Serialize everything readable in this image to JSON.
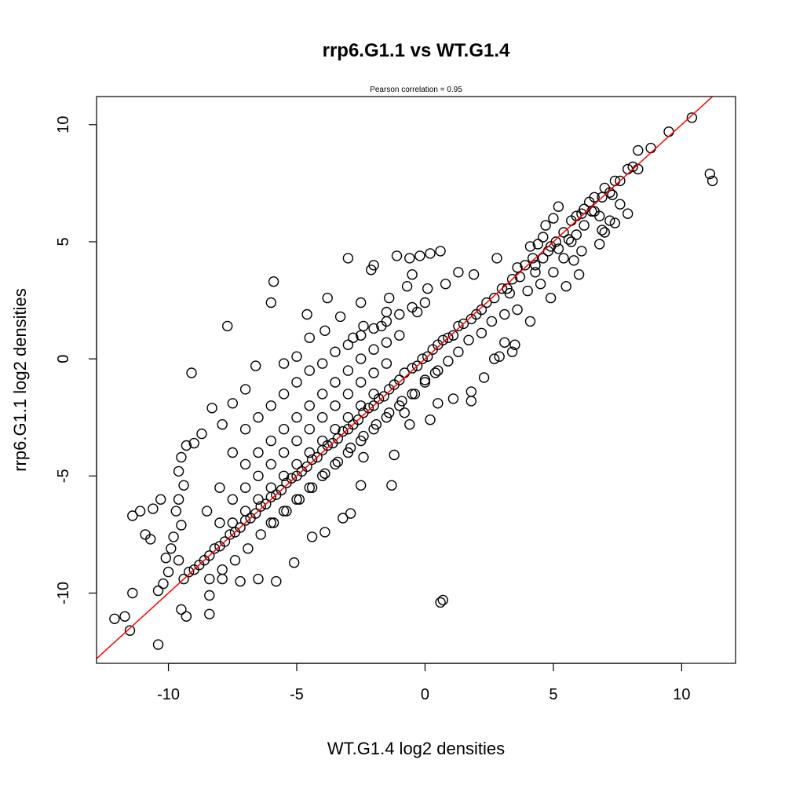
{
  "chart_data": {
    "type": "scatter",
    "title": "rrp6.G1.1 vs WT.G1.4",
    "subtitle": "Pearson correlation =  0.95",
    "xlabel": "WT.G1.4 log2 densities",
    "ylabel": "rrp6.G1.1 log2 densities",
    "xlim": [
      -12.8,
      12.1
    ],
    "ylim": [
      -13.0,
      11.2
    ],
    "x_ticks": [
      -10,
      -5,
      0,
      5,
      10
    ],
    "x_tick_labels": [
      "-10",
      "-5",
      "0",
      "5",
      "10"
    ],
    "y_ticks": [
      -10,
      -5,
      0,
      5,
      10
    ],
    "y_tick_labels": [
      "-10",
      "-5",
      "0",
      "5",
      "10"
    ],
    "grid": false,
    "marker": "open-circle",
    "point_color": "#000000",
    "fit_line": {
      "slope": 1,
      "intercept": 0,
      "color": "#ff0000"
    },
    "series": [
      {
        "points": [
          [
            10.4,
            10.3
          ],
          [
            9.5,
            9.7
          ],
          [
            8.8,
            9.0
          ],
          [
            8.3,
            8.9
          ],
          [
            7.9,
            8.1
          ],
          [
            8.1,
            8.2
          ],
          [
            7.6,
            7.6
          ],
          [
            7.2,
            7.1
          ],
          [
            6.9,
            6.9
          ],
          [
            6.6,
            6.3
          ],
          [
            6.2,
            5.7
          ],
          [
            5.9,
            5.3
          ],
          [
            5.6,
            5.1
          ],
          [
            5.2,
            4.7
          ],
          [
            4.8,
            4.6
          ],
          [
            4.6,
            5.2
          ],
          [
            4.3,
            4.0
          ],
          [
            3.7,
            3.5
          ],
          [
            3.2,
            3.0
          ],
          [
            4.1,
            4.8
          ],
          [
            4.4,
            4.9
          ],
          [
            4.7,
            5.7
          ],
          [
            5.0,
            6.0
          ],
          [
            5.2,
            6.5
          ],
          [
            5.9,
            6.1
          ],
          [
            6.2,
            6.4
          ],
          [
            6.9,
            5.5
          ],
          [
            7.3,
            7.0
          ],
          [
            7.6,
            6.6
          ],
          [
            7.9,
            6.2
          ],
          [
            7.2,
            5.9
          ],
          [
            6.8,
            6.1
          ],
          [
            6.5,
            6.3
          ],
          [
            6.4,
            6.7
          ],
          [
            6.6,
            6.9
          ],
          [
            7.0,
            7.3
          ],
          [
            7.4,
            7.6
          ],
          [
            6.1,
            6.2
          ],
          [
            5.7,
            5.9
          ],
          [
            5.4,
            5.4
          ],
          [
            5.1,
            5.0
          ],
          [
            4.9,
            4.8
          ],
          [
            4.6,
            4.3
          ],
          [
            4.3,
            3.7
          ],
          [
            4.2,
            4.3
          ],
          [
            3.9,
            4.0
          ],
          [
            3.6,
            3.9
          ],
          [
            3.4,
            3.4
          ],
          [
            3.3,
            2.8
          ],
          [
            3.0,
            3.0
          ],
          [
            2.7,
            2.6
          ],
          [
            2.4,
            2.4
          ],
          [
            2.2,
            2.1
          ],
          [
            2.0,
            1.9
          ],
          [
            1.8,
            1.7
          ],
          [
            1.5,
            1.5
          ],
          [
            1.3,
            1.4
          ],
          [
            1.1,
            1.0
          ],
          [
            0.9,
            0.9
          ],
          [
            0.7,
            0.8
          ],
          [
            0.5,
            0.6
          ],
          [
            0.3,
            0.4
          ],
          [
            0.1,
            0.1
          ],
          [
            -0.1,
            0.0
          ],
          [
            -0.3,
            -0.3
          ],
          [
            -0.5,
            -0.4
          ],
          [
            -0.8,
            -0.6
          ],
          [
            -1.0,
            -0.9
          ],
          [
            -1.2,
            -1.1
          ],
          [
            -1.4,
            -1.3
          ],
          [
            -1.6,
            -1.6
          ],
          [
            -1.8,
            -1.7
          ],
          [
            -2.0,
            -2.0
          ],
          [
            -2.2,
            -2.1
          ],
          [
            -2.4,
            -2.3
          ],
          [
            -2.6,
            -2.6
          ],
          [
            -2.8,
            -2.8
          ],
          [
            -3.0,
            -3.0
          ],
          [
            -3.2,
            -3.1
          ],
          [
            -3.4,
            -3.4
          ],
          [
            -3.6,
            -3.6
          ],
          [
            -3.8,
            -3.7
          ],
          [
            -4.0,
            -3.9
          ],
          [
            -4.2,
            -4.2
          ],
          [
            -4.4,
            -4.3
          ],
          [
            -4.6,
            -4.6
          ],
          [
            -4.8,
            -4.8
          ],
          [
            -5.0,
            -5.0
          ],
          [
            -5.2,
            -5.1
          ],
          [
            -5.4,
            -5.3
          ],
          [
            -5.6,
            -5.6
          ],
          [
            -5.8,
            -5.8
          ],
          [
            -6.0,
            -5.9
          ],
          [
            -6.2,
            -6.2
          ],
          [
            -6.4,
            -6.3
          ],
          [
            -6.6,
            -6.6
          ],
          [
            -6.8,
            -6.8
          ],
          [
            -7.0,
            -6.9
          ],
          [
            -7.2,
            -7.2
          ],
          [
            -7.4,
            -7.4
          ],
          [
            -7.6,
            -7.5
          ],
          [
            -7.8,
            -7.8
          ],
          [
            -8.0,
            -8.0
          ],
          [
            -8.2,
            -8.1
          ],
          [
            -8.4,
            -8.4
          ],
          [
            -8.6,
            -8.6
          ],
          [
            -8.8,
            -8.8
          ],
          [
            -9.0,
            -9.0
          ],
          [
            -9.2,
            -9.1
          ],
          [
            -9.4,
            -9.4
          ],
          [
            -2.0,
            4.0
          ],
          [
            -2.1,
            3.8
          ],
          [
            -3.0,
            4.3
          ],
          [
            -1.1,
            4.4
          ],
          [
            -0.6,
            4.3
          ],
          [
            -0.2,
            4.4
          ],
          [
            0.2,
            4.5
          ],
          [
            0.6,
            4.6
          ],
          [
            -0.5,
            3.6
          ],
          [
            -0.7,
            3.1
          ],
          [
            -1.4,
            2.6
          ],
          [
            -2.5,
            2.4
          ],
          [
            -3.8,
            2.6
          ],
          [
            -5.9,
            3.3
          ],
          [
            -6.0,
            2.4
          ],
          [
            -7.7,
            1.4
          ],
          [
            -3.3,
            1.8
          ],
          [
            -4.6,
            1.9
          ],
          [
            -1.5,
            2.0
          ],
          [
            0.1,
            3.0
          ],
          [
            0.8,
            3.2
          ],
          [
            1.3,
            3.7
          ],
          [
            1.9,
            3.6
          ],
          [
            2.8,
            4.3
          ],
          [
            -2.4,
            1.4
          ],
          [
            -3.9,
            1.2
          ],
          [
            -4.5,
            0.9
          ],
          [
            -2.8,
            0.9
          ],
          [
            -1.7,
            1.4
          ],
          [
            -0.3,
            2.0
          ],
          [
            -5.0,
            0.1
          ],
          [
            -5.5,
            -0.2
          ],
          [
            -6.6,
            -0.3
          ],
          [
            -9.1,
            -0.6
          ],
          [
            -7.0,
            -1.3
          ],
          [
            -7.5,
            -1.9
          ],
          [
            -7.9,
            -2.8
          ],
          [
            -8.3,
            -2.1
          ],
          [
            -8.7,
            -3.2
          ],
          [
            -9.0,
            -3.6
          ],
          [
            -9.3,
            -3.7
          ],
          [
            -9.5,
            -4.2
          ],
          [
            -9.6,
            -4.8
          ],
          [
            -9.4,
            -5.4
          ],
          [
            -9.6,
            -6.0
          ],
          [
            -9.7,
            -6.5
          ],
          [
            -9.5,
            -7.1
          ],
          [
            -9.8,
            -7.6
          ],
          [
            -9.9,
            -8.1
          ],
          [
            -9.6,
            -8.6
          ],
          [
            -10.0,
            -9.1
          ],
          [
            -10.2,
            -9.6
          ],
          [
            -10.4,
            -9.9
          ],
          [
            -10.7,
            -7.7
          ],
          [
            -11.1,
            -6.5
          ],
          [
            -11.4,
            -6.7
          ],
          [
            -10.6,
            -6.4
          ],
          [
            -10.9,
            -7.5
          ],
          [
            -10.3,
            -6.0
          ],
          [
            -10.1,
            -8.5
          ],
          [
            -11.4,
            -10.0
          ],
          [
            -11.7,
            -11.0
          ],
          [
            -12.1,
            -11.1
          ],
          [
            -11.5,
            -11.6
          ],
          [
            -10.4,
            -12.2
          ],
          [
            -9.5,
            -10.7
          ],
          [
            -9.3,
            -11.0
          ],
          [
            -8.4,
            -10.9
          ],
          [
            -8.4,
            -10.1
          ],
          [
            -7.9,
            -9.4
          ],
          [
            -7.2,
            -9.5
          ],
          [
            -6.5,
            -9.4
          ],
          [
            -5.8,
            -9.5
          ],
          [
            -5.1,
            -8.7
          ],
          [
            -4.4,
            -7.6
          ],
          [
            -3.9,
            -7.4
          ],
          [
            -3.2,
            -6.8
          ],
          [
            -2.9,
            -6.6
          ],
          [
            -1.3,
            -5.4
          ],
          [
            -2.5,
            -5.4
          ],
          [
            0.6,
            -10.4
          ],
          [
            0.7,
            -10.3
          ],
          [
            -2.4,
            -4.2
          ],
          [
            -1.2,
            -4.1
          ],
          [
            -0.8,
            -2.3
          ],
          [
            -0.6,
            -2.8
          ],
          [
            0.2,
            -2.6
          ],
          [
            0.5,
            -1.9
          ],
          [
            1.1,
            -1.7
          ],
          [
            1.8,
            -1.8
          ],
          [
            1.8,
            -1.4
          ],
          [
            2.3,
            -0.8
          ],
          [
            2.9,
            0.1
          ],
          [
            2.7,
            0.0
          ],
          [
            3.1,
            0.7
          ],
          [
            3.5,
            0.6
          ],
          [
            3.4,
            0.3
          ],
          [
            4.1,
            1.6
          ],
          [
            4.9,
            2.6
          ],
          [
            5.5,
            3.1
          ],
          [
            6.0,
            3.6
          ],
          [
            5.8,
            4.2
          ],
          [
            6.1,
            4.6
          ],
          [
            6.8,
            4.9
          ],
          [
            7.0,
            5.4
          ],
          [
            7.4,
            5.8
          ],
          [
            8.3,
            8.1
          ],
          [
            11.1,
            7.9
          ],
          [
            11.2,
            7.6
          ],
          [
            5.7,
            5.0
          ],
          [
            5.4,
            4.3
          ],
          [
            5.0,
            3.7
          ],
          [
            4.5,
            3.2
          ],
          [
            4.0,
            2.9
          ],
          [
            3.6,
            2.1
          ],
          [
            3.1,
            1.9
          ],
          [
            2.6,
            1.6
          ],
          [
            2.2,
            1.1
          ],
          [
            1.7,
            0.8
          ],
          [
            1.3,
            0.3
          ],
          [
            0.9,
            -0.1
          ],
          [
            0.4,
            -0.6
          ],
          [
            0.0,
            -0.9
          ],
          [
            -0.4,
            -1.5
          ],
          [
            -0.9,
            -1.8
          ],
          [
            -1.4,
            -2.3
          ],
          [
            -1.9,
            -2.8
          ],
          [
            -2.4,
            -3.3
          ],
          [
            -2.9,
            -3.8
          ],
          [
            -3.4,
            -4.4
          ],
          [
            -3.9,
            -4.9
          ],
          [
            -4.4,
            -5.5
          ],
          [
            -4.9,
            -6.0
          ],
          [
            -5.4,
            -6.5
          ],
          [
            -5.9,
            -7.0
          ],
          [
            -6.4,
            -7.5
          ],
          [
            -6.9,
            -8.1
          ],
          [
            -7.4,
            -8.6
          ],
          [
            -7.9,
            -9.0
          ],
          [
            -8.4,
            -9.4
          ],
          [
            -7.0,
            -3.0
          ],
          [
            -6.5,
            -2.5
          ],
          [
            -6.0,
            -2.0
          ],
          [
            -5.5,
            -1.5
          ],
          [
            -5.0,
            -1.0
          ],
          [
            -4.5,
            -0.5
          ],
          [
            -4.0,
            -0.2
          ],
          [
            -3.5,
            0.3
          ],
          [
            -3.0,
            0.6
          ],
          [
            -2.5,
            1.0
          ],
          [
            -2.0,
            1.3
          ],
          [
            -1.5,
            1.6
          ],
          [
            -1.0,
            1.9
          ],
          [
            -0.5,
            2.2
          ],
          [
            0.0,
            2.4
          ],
          [
            -7.5,
            -4.0
          ],
          [
            -7.0,
            -4.5
          ],
          [
            -6.5,
            -4.0
          ],
          [
            -6.0,
            -3.5
          ],
          [
            -5.5,
            -3.0
          ],
          [
            -5.0,
            -2.5
          ],
          [
            -4.5,
            -2.0
          ],
          [
            -4.0,
            -1.5
          ],
          [
            -3.5,
            -1.0
          ],
          [
            -3.0,
            -0.5
          ],
          [
            -2.5,
            0.0
          ],
          [
            -2.0,
            0.4
          ],
          [
            -1.5,
            0.7
          ],
          [
            -1.0,
            1.0
          ],
          [
            -8.0,
            -5.5
          ],
          [
            -7.5,
            -6.0
          ],
          [
            -7.0,
            -5.5
          ],
          [
            -6.5,
            -5.0
          ],
          [
            -6.0,
            -4.5
          ],
          [
            -5.5,
            -4.0
          ],
          [
            -5.0,
            -3.5
          ],
          [
            -4.5,
            -3.0
          ],
          [
            -4.0,
            -2.5
          ],
          [
            -3.5,
            -2.0
          ],
          [
            -3.0,
            -1.5
          ],
          [
            -2.5,
            -1.0
          ],
          [
            -2.0,
            -0.6
          ],
          [
            -1.5,
            -0.2
          ],
          [
            -8.5,
            -6.5
          ],
          [
            -8.0,
            -7.0
          ],
          [
            -7.5,
            -7.0
          ],
          [
            -7.0,
            -6.5
          ],
          [
            -6.5,
            -6.0
          ],
          [
            -6.0,
            -5.5
          ],
          [
            -5.5,
            -5.0
          ],
          [
            -5.0,
            -4.5
          ],
          [
            -4.5,
            -4.0
          ],
          [
            -4.0,
            -3.5
          ],
          [
            -3.5,
            -3.0
          ],
          [
            -3.0,
            -2.5
          ],
          [
            -2.5,
            -2.0
          ],
          [
            -2.0,
            -1.5
          ],
          [
            -6.0,
            -7.0
          ],
          [
            -5.5,
            -6.5
          ],
          [
            -5.0,
            -6.0
          ],
          [
            -4.5,
            -5.5
          ],
          [
            -4.0,
            -5.0
          ],
          [
            -3.5,
            -4.5
          ],
          [
            -3.0,
            -4.0
          ],
          [
            -2.5,
            -3.5
          ],
          [
            -2.0,
            -3.0
          ],
          [
            -1.5,
            -2.5
          ],
          [
            -1.0,
            -2.0
          ],
          [
            -0.5,
            -1.5
          ],
          [
            0.0,
            -1.0
          ],
          [
            0.5,
            -0.5
          ]
        ]
      }
    ]
  }
}
